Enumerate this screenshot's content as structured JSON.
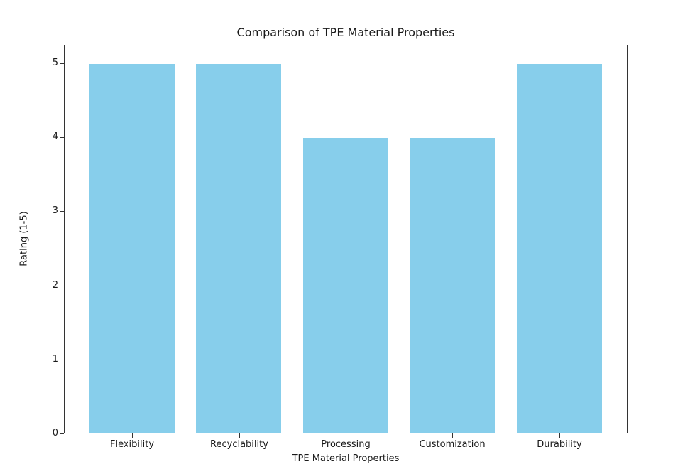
{
  "chart_data": {
    "type": "bar",
    "title": "Comparison of TPE Material Properties",
    "xlabel": "TPE Material Properties",
    "ylabel": "Rating (1-5)",
    "categories": [
      "Flexibility",
      "Recyclability",
      "Processing",
      "Customization",
      "Durability"
    ],
    "values": [
      5,
      5,
      4,
      4,
      5
    ],
    "ylim": [
      0,
      5.25
    ],
    "yticks": [
      0,
      1,
      2,
      3,
      4,
      5
    ],
    "bar_color": "#87CEEB",
    "bar_width_fraction": 0.8,
    "grid": false,
    "legend": null,
    "background_color": "#FFFFFF",
    "frame": "full-box"
  }
}
